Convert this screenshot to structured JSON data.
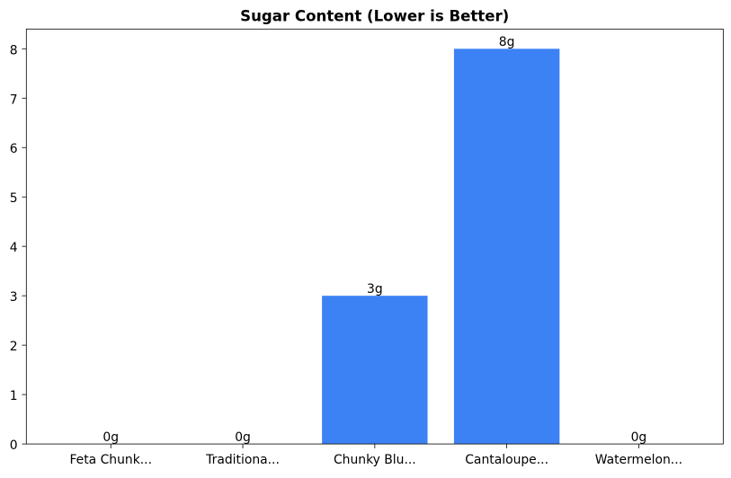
{
  "chart_data": {
    "type": "bar",
    "title": "Sugar Content (Lower is Better)",
    "categories": [
      "Feta Chunk...",
      "Traditiona...",
      "Chunky Blu...",
      "Cantaloupe...",
      "Watermelon..."
    ],
    "values": [
      0,
      0,
      3,
      8,
      0
    ],
    "bar_labels": [
      "0g",
      "0g",
      "3g",
      "8g",
      "0g"
    ],
    "yticks": [
      0,
      1,
      2,
      3,
      4,
      5,
      6,
      7,
      8
    ],
    "ylim": [
      0,
      8.4
    ],
    "xlim": [
      -0.64,
      4.64
    ],
    "bar_width": 0.8,
    "xlabel": "",
    "ylabel": "",
    "grid": false,
    "legend_position": "none",
    "colors": {
      "bar": "#3C82F5",
      "axis": "#000000",
      "text": "#000000",
      "background": "#ffffff"
    }
  }
}
